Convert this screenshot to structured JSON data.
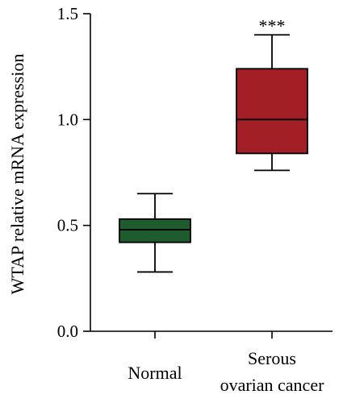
{
  "chart_data": {
    "type": "box",
    "ylabel": "WTAP relative mRNA expression",
    "ylim": [
      0.0,
      1.5
    ],
    "yticks": [
      "0.0",
      "0.5",
      "1.0",
      "1.5"
    ],
    "ytick_values": [
      0.0,
      0.5,
      1.0,
      1.5
    ],
    "grid": false,
    "categories": [
      {
        "lines": [
          "Normal"
        ],
        "color": "#1e5c2e",
        "min": 0.28,
        "q1": 0.42,
        "median": 0.48,
        "q3": 0.53,
        "max": 0.65,
        "annotation": ""
      },
      {
        "lines": [
          "Serous",
          "ovarian cancer"
        ],
        "color": "#a11f25",
        "min": 0.76,
        "q1": 0.84,
        "median": 1.0,
        "q3": 1.24,
        "max": 1.4,
        "annotation": "***"
      }
    ]
  }
}
